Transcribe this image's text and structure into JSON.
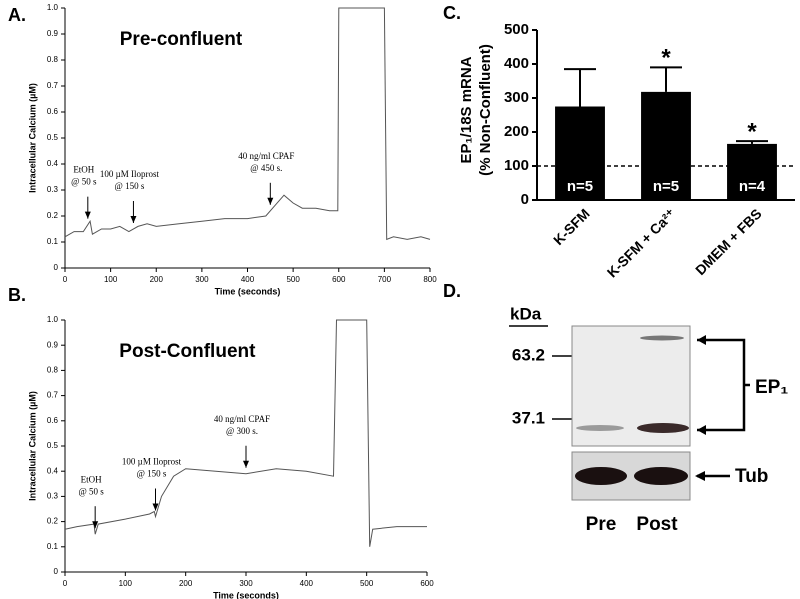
{
  "chart_data": [
    {
      "type": "line",
      "panel": "A.",
      "title": "Pre-confluent",
      "xlabel": "Time (seconds)",
      "ylabel": "Intracellular Calcium (µM)",
      "xlim": [
        0,
        800
      ],
      "xticks": [
        0,
        100,
        200,
        300,
        400,
        500,
        600,
        700,
        800
      ],
      "ylim": [
        0,
        1
      ],
      "yticks": [
        0,
        0.1,
        0.2,
        0.3,
        0.4,
        0.5,
        0.6,
        0.7,
        0.8,
        0.9,
        {
          "value": 1,
          "label": "1.0"
        }
      ],
      "color": "#555555",
      "x": [
        0,
        20,
        40,
        55,
        60,
        80,
        100,
        120,
        140,
        160,
        180,
        200,
        250,
        300,
        350,
        400,
        440,
        460,
        480,
        500,
        520,
        550,
        580,
        598,
        600,
        700,
        705,
        720,
        750,
        780,
        800
      ],
      "values": [
        0.12,
        0.14,
        0.14,
        0.18,
        0.13,
        0.15,
        0.15,
        0.16,
        0.14,
        0.16,
        0.17,
        0.16,
        0.17,
        0.18,
        0.19,
        0.19,
        0.2,
        0.24,
        0.28,
        0.25,
        0.23,
        0.23,
        0.22,
        0.22,
        1,
        1,
        0.11,
        0.12,
        0.11,
        0.12,
        0.11
      ],
      "annotations": [
        {
          "x": 50,
          "lines": [
            "EtOH",
            "@ 50 s"
          ]
        },
        {
          "x": 150,
          "lines": [
            "100 µM Iloprost",
            "@ 150 s"
          ]
        },
        {
          "x": 450,
          "lines": [
            "40 ng/ml CPAF",
            "@ 450 s."
          ]
        }
      ]
    },
    {
      "type": "line",
      "panel": "B.",
      "title": "Post-Confluent",
      "xlabel": "Time (seconds)",
      "ylabel": "Intracellular Calcium (µM)",
      "xlim": [
        0,
        600
      ],
      "xticks": [
        0,
        100,
        200,
        300,
        400,
        500,
        600
      ],
      "ylim": [
        0,
        1
      ],
      "yticks": [
        0,
        0.1,
        0.2,
        0.3,
        0.4,
        0.5,
        0.6,
        0.7,
        0.8,
        0.9,
        {
          "value": 1,
          "label": "1.0"
        }
      ],
      "color": "#555555",
      "x": [
        0,
        20,
        48,
        50,
        55,
        100,
        140,
        148,
        150,
        160,
        180,
        200,
        250,
        300,
        350,
        400,
        445,
        450,
        500,
        505,
        510,
        550,
        600
      ],
      "values": [
        0.17,
        0.18,
        0.19,
        0.15,
        0.19,
        0.21,
        0.23,
        0.24,
        0.22,
        0.3,
        0.38,
        0.41,
        0.4,
        0.39,
        0.41,
        0.4,
        0.38,
        1,
        1,
        0.1,
        0.17,
        0.18,
        0.18
      ],
      "annotations": [
        {
          "x": 50,
          "lines": [
            "EtOH",
            "@ 50 s"
          ]
        },
        {
          "x": 150,
          "lines": [
            "100 µM Iloprost",
            "@ 150 s"
          ]
        },
        {
          "x": 300,
          "lines": [
            "40 ng/ml CPAF",
            "@ 300 s."
          ]
        }
      ]
    },
    {
      "type": "bar",
      "panel": "C.",
      "ylabel": [
        "EP₁/18S mRNA",
        "(% Non-Confluent)"
      ],
      "categories": [
        "K-SFM",
        "K-SFM + Ca²⁺",
        "DMEM + FBS"
      ],
      "values": [
        275,
        318,
        165
      ],
      "errors": [
        110,
        72,
        8
      ],
      "n_labels": [
        "n=5",
        "n=5",
        "n=4"
      ],
      "significance": [
        null,
        "*",
        "*"
      ],
      "color": "#000000",
      "reference_line": 100,
      "ylim": [
        0,
        500
      ],
      "yticks": [
        0,
        100,
        200,
        300,
        400,
        500
      ]
    }
  ],
  "blot": {
    "panel": "D.",
    "unit": "kDa",
    "markers": [
      "63.2",
      "37.1"
    ],
    "bands": [
      "EP₁",
      "Tub"
    ],
    "lanes": [
      "Pre",
      "Post"
    ]
  }
}
